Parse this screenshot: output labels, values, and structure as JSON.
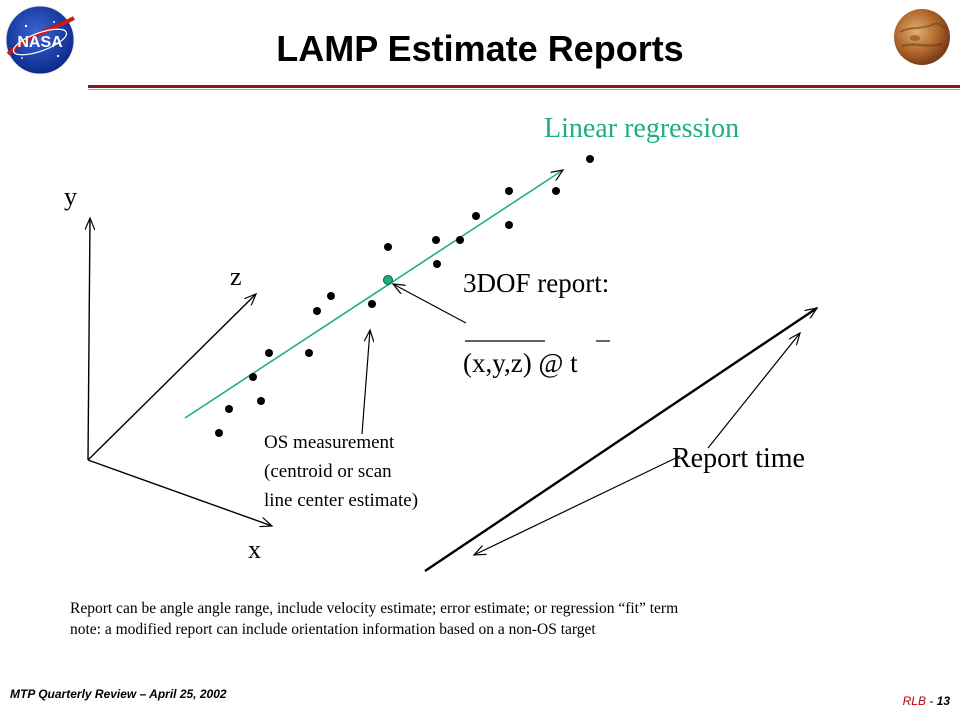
{
  "title": "LAMP Estimate Reports",
  "labels": {
    "linear_regression": "Linear regression",
    "axis_y": "y",
    "axis_z": "z",
    "axis_x": "x",
    "report_heading": "3DOF report:",
    "report_value": "(x,y,z) @ t",
    "os_line1": "OS measurement",
    "os_line2": "(centroid or scan",
    "os_line3": "line center estimate)",
    "report_time": "Report time"
  },
  "notes": {
    "line1": "Report can be angle angle range, include velocity estimate; error estimate; or regression “fit” term",
    "line2": "note: a modified report can include orientation information based on a non-OS target"
  },
  "footer": {
    "left": "MTP Quarterly Review – April 25, 2002",
    "right_author": "RLB",
    "right_sep": " - ",
    "page_number": "13"
  },
  "logos": {
    "nasa": "NASA",
    "planet": "mars-image"
  },
  "colors": {
    "regression_line": "#1fae84",
    "fit_point": "#1fae84",
    "title_rule": "#8a1a1a",
    "footer_accent": "#c00000"
  }
}
